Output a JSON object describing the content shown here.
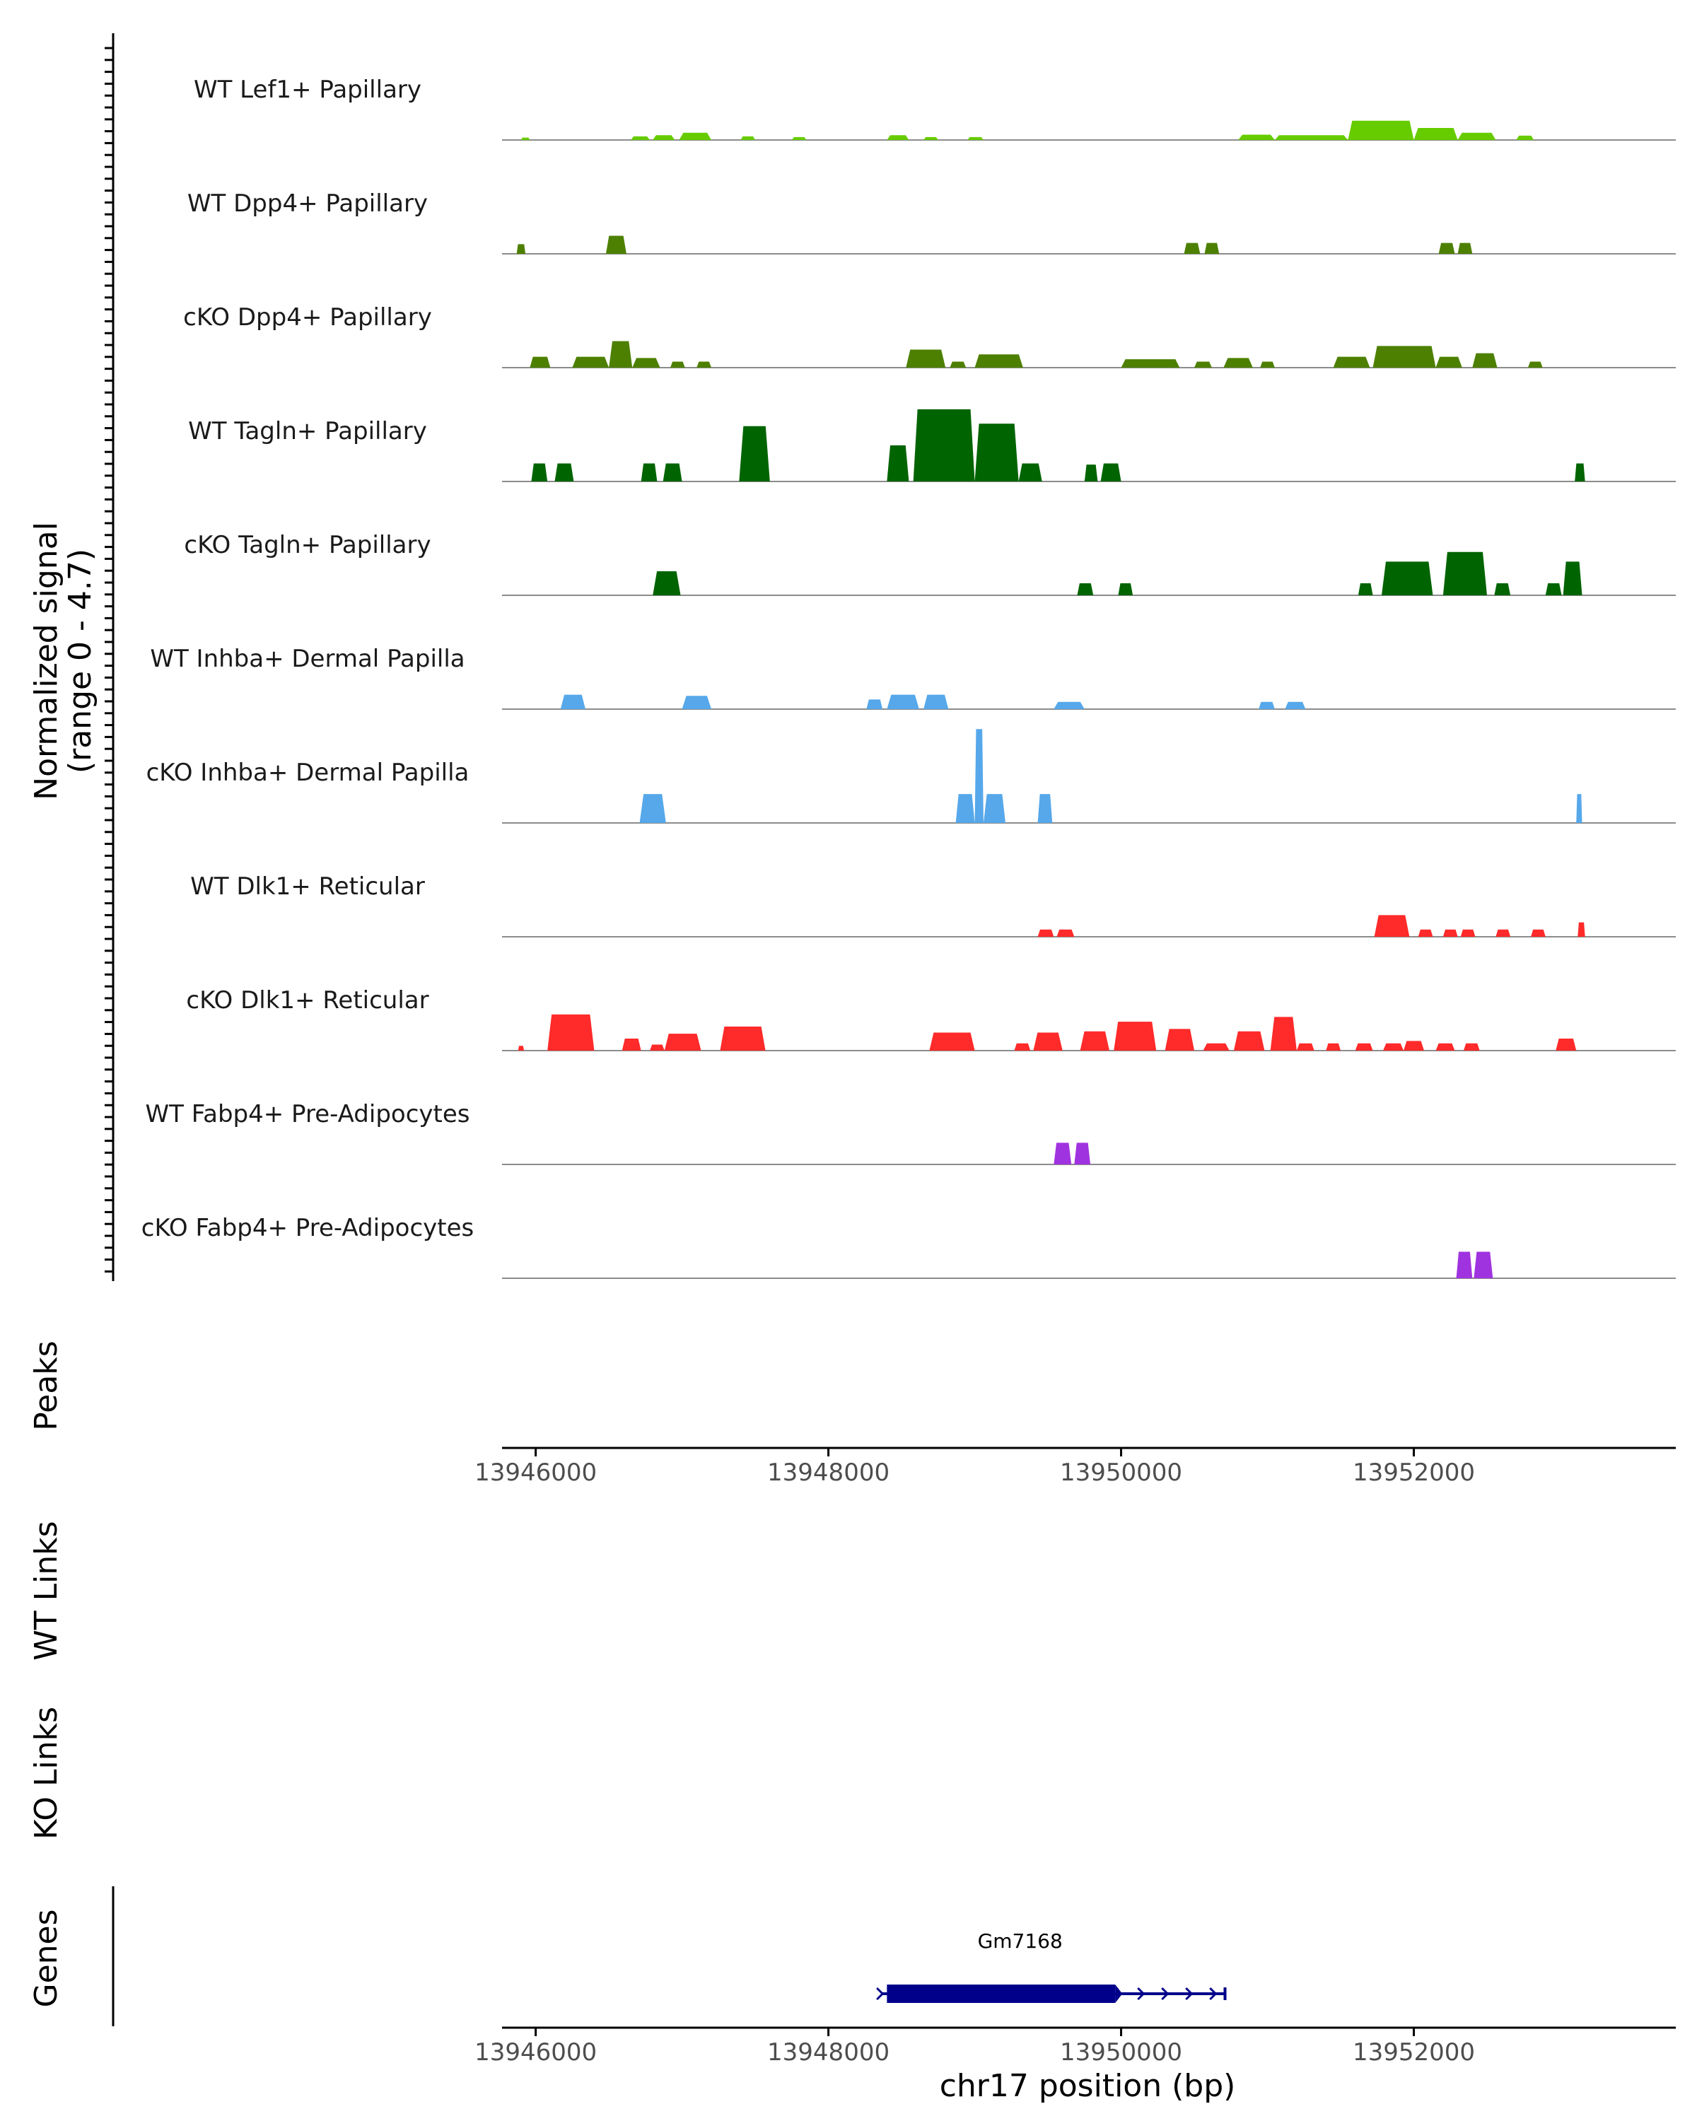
{
  "chart_data": {
    "type": "area",
    "xlabel": "chr17 position (bp)",
    "ylabel": "Normalized signal",
    "ylabel_range": "(range 0 - 4.7)",
    "ylim": [
      0,
      4.7
    ],
    "xlim": [
      13945770,
      13953790
    ],
    "x_ticks": [
      13946000,
      13948000,
      13950000,
      13952000
    ],
    "x_tick_labels": [
      "13946000",
      "13948000",
      "13950000",
      "13952000"
    ],
    "panel_labels": {
      "peaks": "Peaks",
      "wt_links": "WT Links",
      "ko_links": "KO Links",
      "genes": "Genes"
    },
    "series": [
      {
        "name": "WT Lef1+ Papillary",
        "color": "#66cc00",
        "regions": [
          {
            "start": 13945900,
            "end": 13945960,
            "height": 0.1
          },
          {
            "start": 13946650,
            "end": 13946780,
            "height": 0.15
          },
          {
            "start": 13946800,
            "end": 13946950,
            "height": 0.2
          },
          {
            "start": 13946980,
            "end": 13947200,
            "height": 0.3
          },
          {
            "start": 13947400,
            "end": 13947500,
            "height": 0.15
          },
          {
            "start": 13947750,
            "end": 13947850,
            "height": 0.12
          },
          {
            "start": 13948400,
            "end": 13948550,
            "height": 0.2
          },
          {
            "start": 13948650,
            "end": 13948750,
            "height": 0.12
          },
          {
            "start": 13948950,
            "end": 13949060,
            "height": 0.12
          },
          {
            "start": 13950800,
            "end": 13951050,
            "height": 0.22
          },
          {
            "start": 13951050,
            "end": 13951550,
            "height": 0.2
          },
          {
            "start": 13951550,
            "end": 13952000,
            "height": 0.8
          },
          {
            "start": 13952000,
            "end": 13952300,
            "height": 0.5
          },
          {
            "start": 13952300,
            "end": 13952560,
            "height": 0.3
          },
          {
            "start": 13952700,
            "end": 13952820,
            "height": 0.18
          }
        ]
      },
      {
        "name": "WT Dpp4+ Papillary",
        "color": "#4d8000",
        "regions": [
          {
            "start": 13945870,
            "end": 13945930,
            "height": 0.4
          },
          {
            "start": 13946480,
            "end": 13946620,
            "height": 0.75
          },
          {
            "start": 13950430,
            "end": 13950540,
            "height": 0.45
          },
          {
            "start": 13950570,
            "end": 13950670,
            "height": 0.45
          },
          {
            "start": 13952170,
            "end": 13952280,
            "height": 0.45
          },
          {
            "start": 13952300,
            "end": 13952400,
            "height": 0.45
          }
        ]
      },
      {
        "name": "cKO Dpp4+ Papillary",
        "color": "#4d8000",
        "regions": [
          {
            "start": 13945960,
            "end": 13946100,
            "height": 0.45
          },
          {
            "start": 13946250,
            "end": 13946500,
            "height": 0.45
          },
          {
            "start": 13946500,
            "end": 13946660,
            "height": 1.1
          },
          {
            "start": 13946660,
            "end": 13946850,
            "height": 0.4
          },
          {
            "start": 13946920,
            "end": 13947020,
            "height": 0.25
          },
          {
            "start": 13947100,
            "end": 13947200,
            "height": 0.25
          },
          {
            "start": 13948530,
            "end": 13948800,
            "height": 0.75
          },
          {
            "start": 13948830,
            "end": 13948940,
            "height": 0.25
          },
          {
            "start": 13949000,
            "end": 13949330,
            "height": 0.55
          },
          {
            "start": 13950000,
            "end": 13950400,
            "height": 0.35
          },
          {
            "start": 13950500,
            "end": 13950620,
            "height": 0.25
          },
          {
            "start": 13950700,
            "end": 13950900,
            "height": 0.4
          },
          {
            "start": 13950950,
            "end": 13951050,
            "height": 0.25
          },
          {
            "start": 13951450,
            "end": 13951700,
            "height": 0.45
          },
          {
            "start": 13951720,
            "end": 13952150,
            "height": 0.9
          },
          {
            "start": 13952150,
            "end": 13952330,
            "height": 0.45
          },
          {
            "start": 13952400,
            "end": 13952570,
            "height": 0.6
          },
          {
            "start": 13952780,
            "end": 13952880,
            "height": 0.25
          }
        ]
      },
      {
        "name": "WT Tagln+ Papillary",
        "color": "#006400",
        "regions": [
          {
            "start": 13945970,
            "end": 13946080,
            "height": 0.75
          },
          {
            "start": 13946130,
            "end": 13946260,
            "height": 0.75
          },
          {
            "start": 13946720,
            "end": 13946830,
            "height": 0.75
          },
          {
            "start": 13946870,
            "end": 13947000,
            "height": 0.75
          },
          {
            "start": 13947390,
            "end": 13947600,
            "height": 2.3
          },
          {
            "start": 13948400,
            "end": 13948550,
            "height": 1.5
          },
          {
            "start": 13948580,
            "end": 13949000,
            "height": 3.0
          },
          {
            "start": 13949000,
            "end": 13949300,
            "height": 2.4
          },
          {
            "start": 13949300,
            "end": 13949460,
            "height": 0.75
          },
          {
            "start": 13949750,
            "end": 13949840,
            "height": 0.7
          },
          {
            "start": 13949860,
            "end": 13950000,
            "height": 0.75
          },
          {
            "start": 13953100,
            "end": 13953170,
            "height": 0.75
          }
        ]
      },
      {
        "name": "cKO Tagln+ Papillary",
        "color": "#006400",
        "regions": [
          {
            "start": 13946800,
            "end": 13946990,
            "height": 1.0
          },
          {
            "start": 13949700,
            "end": 13949810,
            "height": 0.5
          },
          {
            "start": 13949980,
            "end": 13950080,
            "height": 0.5
          },
          {
            "start": 13951620,
            "end": 13951720,
            "height": 0.5
          },
          {
            "start": 13951780,
            "end": 13952130,
            "height": 1.4
          },
          {
            "start": 13952200,
            "end": 13952500,
            "height": 1.8
          },
          {
            "start": 13952550,
            "end": 13952660,
            "height": 0.5
          },
          {
            "start": 13952900,
            "end": 13953010,
            "height": 0.5
          },
          {
            "start": 13953020,
            "end": 13953150,
            "height": 1.4
          }
        ]
      },
      {
        "name": "WT Inhba+ Dermal Papilla",
        "color": "#56a8ea",
        "regions": [
          {
            "start": 13946170,
            "end": 13946340,
            "height": 0.6
          },
          {
            "start": 13947000,
            "end": 13947200,
            "height": 0.55
          },
          {
            "start": 13948260,
            "end": 13948370,
            "height": 0.4
          },
          {
            "start": 13948400,
            "end": 13948620,
            "height": 0.6
          },
          {
            "start": 13948650,
            "end": 13948820,
            "height": 0.6
          },
          {
            "start": 13949540,
            "end": 13949750,
            "height": 0.3
          },
          {
            "start": 13950940,
            "end": 13951050,
            "height": 0.3
          },
          {
            "start": 13951120,
            "end": 13951260,
            "height": 0.3
          }
        ]
      },
      {
        "name": "cKO Inhba+ Dermal Papilla",
        "color": "#56a8ea",
        "regions": [
          {
            "start": 13946710,
            "end": 13946890,
            "height": 1.2
          },
          {
            "start": 13948870,
            "end": 13949000,
            "height": 1.2
          },
          {
            "start": 13949000,
            "end": 13949060,
            "height": 3.9
          },
          {
            "start": 13949060,
            "end": 13949210,
            "height": 1.2
          },
          {
            "start": 13949430,
            "end": 13949530,
            "height": 1.2
          },
          {
            "start": 13953110,
            "end": 13953150,
            "height": 1.2
          }
        ]
      },
      {
        "name": "WT Dlk1+ Reticular",
        "color": "#ff2a2a",
        "regions": [
          {
            "start": 13949430,
            "end": 13949540,
            "height": 0.3
          },
          {
            "start": 13949560,
            "end": 13949680,
            "height": 0.3
          },
          {
            "start": 13951730,
            "end": 13951970,
            "height": 0.9
          },
          {
            "start": 13952030,
            "end": 13952130,
            "height": 0.3
          },
          {
            "start": 13952200,
            "end": 13952300,
            "height": 0.3
          },
          {
            "start": 13952320,
            "end": 13952420,
            "height": 0.3
          },
          {
            "start": 13952560,
            "end": 13952660,
            "height": 0.3
          },
          {
            "start": 13952800,
            "end": 13952900,
            "height": 0.3
          },
          {
            "start": 13953120,
            "end": 13953170,
            "height": 0.6
          }
        ]
      },
      {
        "name": "cKO Dlk1+ Reticular",
        "color": "#ff2a2a",
        "regions": [
          {
            "start": 13945880,
            "end": 13945920,
            "height": 0.2
          },
          {
            "start": 13946080,
            "end": 13946400,
            "height": 1.5
          },
          {
            "start": 13946590,
            "end": 13946720,
            "height": 0.5
          },
          {
            "start": 13946780,
            "end": 13946880,
            "height": 0.25
          },
          {
            "start": 13946880,
            "end": 13947130,
            "height": 0.7
          },
          {
            "start": 13947260,
            "end": 13947570,
            "height": 1.0
          },
          {
            "start": 13948690,
            "end": 13949000,
            "height": 0.75
          },
          {
            "start": 13949270,
            "end": 13949380,
            "height": 0.3
          },
          {
            "start": 13949400,
            "end": 13949600,
            "height": 0.75
          },
          {
            "start": 13949720,
            "end": 13949920,
            "height": 0.8
          },
          {
            "start": 13949950,
            "end": 13950240,
            "height": 1.2
          },
          {
            "start": 13950300,
            "end": 13950500,
            "height": 0.9
          },
          {
            "start": 13950560,
            "end": 13950740,
            "height": 0.3
          },
          {
            "start": 13950770,
            "end": 13950980,
            "height": 0.8
          },
          {
            "start": 13951020,
            "end": 13951200,
            "height": 1.4
          },
          {
            "start": 13951200,
            "end": 13951320,
            "height": 0.3
          },
          {
            "start": 13951400,
            "end": 13951500,
            "height": 0.3
          },
          {
            "start": 13951600,
            "end": 13951720,
            "height": 0.3
          },
          {
            "start": 13951790,
            "end": 13951930,
            "height": 0.3
          },
          {
            "start": 13951930,
            "end": 13952070,
            "height": 0.4
          },
          {
            "start": 13952150,
            "end": 13952280,
            "height": 0.3
          },
          {
            "start": 13952340,
            "end": 13952450,
            "height": 0.3
          },
          {
            "start": 13952970,
            "end": 13953110,
            "height": 0.5
          }
        ]
      },
      {
        "name": "WT Fabp4+ Pre-Adipocytes",
        "color": "#a033e0",
        "regions": [
          {
            "start": 13949540,
            "end": 13949660,
            "height": 0.9
          },
          {
            "start": 13949680,
            "end": 13949790,
            "height": 0.9
          }
        ]
      },
      {
        "name": "cKO Fabp4+ Pre-Adipocytes",
        "color": "#a033e0",
        "regions": [
          {
            "start": 13952290,
            "end": 13952400,
            "height": 1.1
          },
          {
            "start": 13952410,
            "end": 13952540,
            "height": 1.1
          }
        ]
      }
    ],
    "genes": [
      {
        "name": "Gm7168",
        "start": 13948370,
        "end": 13950710,
        "thick_start": 13948400,
        "thick_end": 13949960,
        "strand": "+"
      }
    ]
  }
}
